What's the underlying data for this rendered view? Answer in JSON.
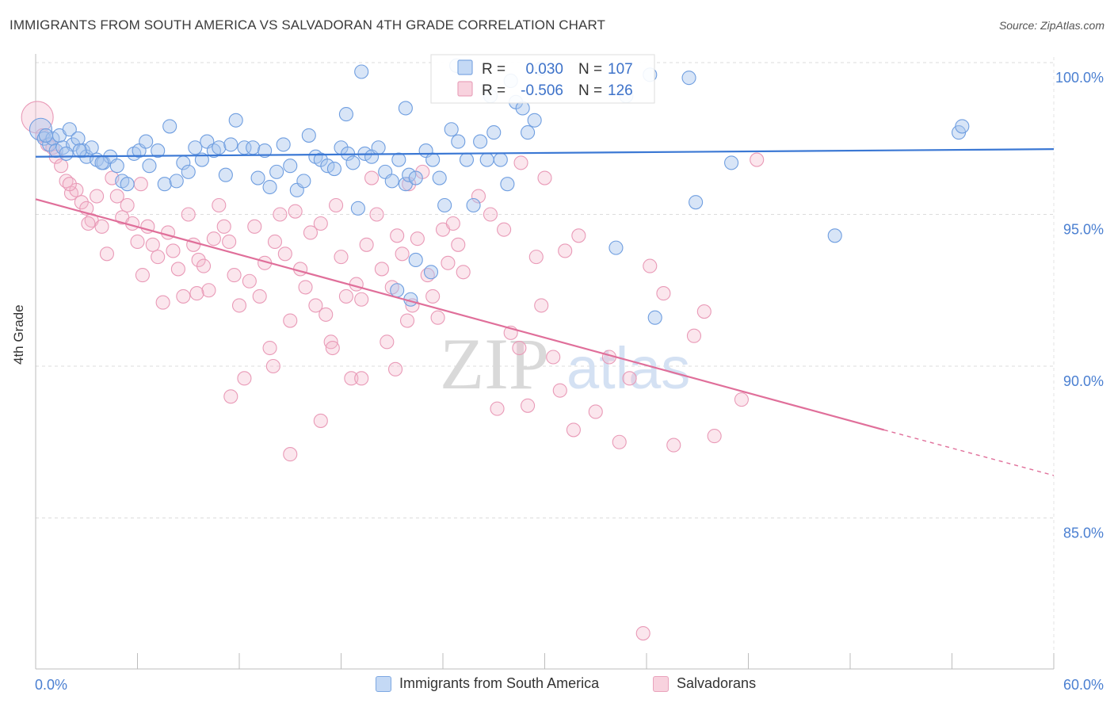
{
  "title": "IMMIGRANTS FROM SOUTH AMERICA VS SALVADORAN 4TH GRADE CORRELATION CHART",
  "source": "Source: ZipAtlas.com",
  "watermark": {
    "zip": "ZIP",
    "atlas": "atlas"
  },
  "chart_data": {
    "type": "scatter",
    "xlabel": "",
    "ylabel": "4th Grade",
    "xlim": [
      0,
      60
    ],
    "ylim": [
      80.5,
      101
    ],
    "x_tick_labels": [
      "0.0%",
      "60.0%"
    ],
    "y_ticks": [
      100,
      95,
      90,
      85
    ],
    "y_tick_labels": [
      "100.0%",
      "95.0%",
      "90.0%",
      "85.0%"
    ],
    "grid": true,
    "legend_position": "top-center",
    "colors": {
      "blue": "#4a86d8",
      "blue_fill": "#a9c6ee",
      "pink": "#e06f9a",
      "pink_fill": "#f3b6cb",
      "accent_text": "#3d72c9"
    },
    "stats": [
      {
        "r_label": "R =",
        "r_value": "0.030",
        "n_label": "N =",
        "n_value": "107"
      },
      {
        "r_label": "R =",
        "r_value": "-0.506",
        "n_label": "N =",
        "n_value": "126"
      }
    ],
    "series": [
      {
        "name": "Immigrants from South America",
        "color": "#4a86d8",
        "trend": {
          "x": [
            0,
            60
          ],
          "y": [
            96.9,
            97.15
          ]
        },
        "points": [
          [
            0.3,
            97.8
          ],
          [
            0.5,
            97.5
          ],
          [
            0.8,
            97.3
          ],
          [
            1.0,
            97.5
          ],
          [
            1.2,
            97.1
          ],
          [
            1.4,
            97.6
          ],
          [
            1.6,
            97.2
          ],
          [
            2.0,
            97.8
          ],
          [
            2.2,
            97.3
          ],
          [
            2.5,
            97.5
          ],
          [
            2.8,
            97.1
          ],
          [
            3.0,
            96.9
          ],
          [
            3.3,
            97.2
          ],
          [
            3.6,
            96.8
          ],
          [
            4.0,
            96.7
          ],
          [
            4.4,
            96.9
          ],
          [
            4.8,
            96.6
          ],
          [
            5.1,
            96.1
          ],
          [
            5.4,
            96.0
          ],
          [
            5.8,
            97.0
          ],
          [
            6.1,
            97.1
          ],
          [
            6.5,
            97.4
          ],
          [
            6.7,
            96.6
          ],
          [
            7.2,
            97.1
          ],
          [
            7.6,
            96.0
          ],
          [
            7.9,
            97.9
          ],
          [
            8.3,
            96.1
          ],
          [
            8.7,
            96.7
          ],
          [
            9.0,
            96.4
          ],
          [
            9.4,
            97.2
          ],
          [
            9.8,
            96.8
          ],
          [
            10.1,
            97.4
          ],
          [
            10.5,
            97.1
          ],
          [
            10.8,
            97.2
          ],
          [
            11.2,
            96.3
          ],
          [
            11.5,
            97.3
          ],
          [
            11.8,
            98.1
          ],
          [
            12.3,
            97.2
          ],
          [
            12.8,
            97.2
          ],
          [
            13.1,
            96.2
          ],
          [
            13.5,
            97.1
          ],
          [
            13.8,
            95.9
          ],
          [
            14.2,
            96.4
          ],
          [
            14.6,
            97.3
          ],
          [
            15.0,
            96.6
          ],
          [
            15.4,
            95.8
          ],
          [
            15.8,
            96.1
          ],
          [
            16.1,
            97.6
          ],
          [
            16.5,
            96.9
          ],
          [
            16.8,
            96.8
          ],
          [
            17.2,
            96.6
          ],
          [
            17.6,
            96.5
          ],
          [
            18.0,
            97.2
          ],
          [
            18.4,
            97.0
          ],
          [
            18.7,
            96.7
          ],
          [
            19.0,
            95.2
          ],
          [
            19.4,
            97.0
          ],
          [
            19.8,
            96.9
          ],
          [
            20.2,
            97.2
          ],
          [
            20.6,
            96.4
          ],
          [
            21.0,
            96.1
          ],
          [
            21.4,
            96.8
          ],
          [
            21.8,
            96.0
          ],
          [
            22.0,
            96.3
          ],
          [
            22.4,
            96.2
          ],
          [
            23.0,
            97.1
          ],
          [
            23.4,
            96.8
          ],
          [
            23.8,
            96.2
          ],
          [
            24.1,
            95.3
          ],
          [
            24.5,
            97.8
          ],
          [
            24.9,
            97.4
          ],
          [
            25.4,
            96.8
          ],
          [
            25.8,
            95.3
          ],
          [
            26.2,
            97.4
          ],
          [
            26.6,
            96.8
          ],
          [
            27.0,
            97.7
          ],
          [
            27.4,
            96.8
          ],
          [
            27.8,
            96.0
          ],
          [
            28.3,
            98.7
          ],
          [
            28.7,
            98.5
          ],
          [
            29.0,
            97.7
          ],
          [
            29.4,
            98.1
          ],
          [
            0.6,
            97.6
          ],
          [
            1.8,
            97.0
          ],
          [
            2.6,
            97.1
          ],
          [
            3.9,
            96.7
          ],
          [
            19.2,
            99.7
          ],
          [
            18.3,
            98.3
          ],
          [
            24.8,
            99.9
          ],
          [
            28.0,
            99.4
          ],
          [
            29.8,
            99.8
          ],
          [
            21.8,
            98.5
          ],
          [
            26.8,
            98.9
          ],
          [
            22.4,
            93.5
          ],
          [
            23.3,
            93.1
          ],
          [
            21.3,
            92.5
          ],
          [
            22.1,
            92.2
          ],
          [
            34.8,
            98.9
          ],
          [
            36.2,
            99.6
          ],
          [
            38.5,
            99.5
          ],
          [
            38.9,
            95.4
          ],
          [
            36.5,
            91.6
          ],
          [
            34.2,
            93.9
          ],
          [
            41.0,
            96.7
          ],
          [
            47.1,
            94.3
          ],
          [
            54.4,
            97.7
          ],
          [
            54.6,
            97.9
          ]
        ]
      },
      {
        "name": "Salvadorans",
        "color": "#e06f9a",
        "trend": {
          "x": [
            0,
            50
          ],
          "y": [
            95.5,
            87.9
          ]
        },
        "trend_dashed": {
          "x": [
            50,
            60
          ],
          "y": [
            87.9,
            86.4
          ]
        },
        "points": [
          [
            0.1,
            98.2
          ],
          [
            0.4,
            97.6
          ],
          [
            0.7,
            97.3
          ],
          [
            1.0,
            97.2
          ],
          [
            1.2,
            96.9
          ],
          [
            1.5,
            96.6
          ],
          [
            1.8,
            96.1
          ],
          [
            2.1,
            95.7
          ],
          [
            2.4,
            95.8
          ],
          [
            2.7,
            95.4
          ],
          [
            3.0,
            95.2
          ],
          [
            3.3,
            94.8
          ],
          [
            3.6,
            95.6
          ],
          [
            3.9,
            94.6
          ],
          [
            4.2,
            93.7
          ],
          [
            4.5,
            96.2
          ],
          [
            4.8,
            95.6
          ],
          [
            5.1,
            94.9
          ],
          [
            5.4,
            95.3
          ],
          [
            5.7,
            94.7
          ],
          [
            6.0,
            94.1
          ],
          [
            6.3,
            93.0
          ],
          [
            6.6,
            94.6
          ],
          [
            6.9,
            94.0
          ],
          [
            7.2,
            93.6
          ],
          [
            7.5,
            92.1
          ],
          [
            7.8,
            94.4
          ],
          [
            8.1,
            93.8
          ],
          [
            8.4,
            93.2
          ],
          [
            8.7,
            92.3
          ],
          [
            9.0,
            95.0
          ],
          [
            9.3,
            94.0
          ],
          [
            9.6,
            93.5
          ],
          [
            9.9,
            93.3
          ],
          [
            10.2,
            92.5
          ],
          [
            10.5,
            94.2
          ],
          [
            10.8,
            95.3
          ],
          [
            11.1,
            94.6
          ],
          [
            11.4,
            94.1
          ],
          [
            11.7,
            93.0
          ],
          [
            12.0,
            92.0
          ],
          [
            12.3,
            89.6
          ],
          [
            12.6,
            92.8
          ],
          [
            12.9,
            94.6
          ],
          [
            13.2,
            92.3
          ],
          [
            13.5,
            93.4
          ],
          [
            13.8,
            90.6
          ],
          [
            14.1,
            94.1
          ],
          [
            14.4,
            95.0
          ],
          [
            14.7,
            93.7
          ],
          [
            15.0,
            91.5
          ],
          [
            15.3,
            95.1
          ],
          [
            15.6,
            93.2
          ],
          [
            15.9,
            92.6
          ],
          [
            16.2,
            94.4
          ],
          [
            16.5,
            92.0
          ],
          [
            16.8,
            94.7
          ],
          [
            17.1,
            91.7
          ],
          [
            17.4,
            90.8
          ],
          [
            17.7,
            95.3
          ],
          [
            18.0,
            93.6
          ],
          [
            18.3,
            92.3
          ],
          [
            18.6,
            89.6
          ],
          [
            18.9,
            92.7
          ],
          [
            19.2,
            92.2
          ],
          [
            19.5,
            94.0
          ],
          [
            19.8,
            96.2
          ],
          [
            20.1,
            95.0
          ],
          [
            20.4,
            93.2
          ],
          [
            20.7,
            90.8
          ],
          [
            21.0,
            92.6
          ],
          [
            21.3,
            94.3
          ],
          [
            21.6,
            93.7
          ],
          [
            21.9,
            91.5
          ],
          [
            22.2,
            92.0
          ],
          [
            22.5,
            94.2
          ],
          [
            22.8,
            96.4
          ],
          [
            23.1,
            93.0
          ],
          [
            23.4,
            92.3
          ],
          [
            23.7,
            91.6
          ],
          [
            24.0,
            94.5
          ],
          [
            24.3,
            93.4
          ],
          [
            24.6,
            94.7
          ],
          [
            24.9,
            94.0
          ],
          [
            25.2,
            93.1
          ],
          [
            2.0,
            96.0
          ],
          [
            3.1,
            94.7
          ],
          [
            6.2,
            96.0
          ],
          [
            9.5,
            92.4
          ],
          [
            14.0,
            90.0
          ],
          [
            11.5,
            89.0
          ],
          [
            15.0,
            87.1
          ],
          [
            16.8,
            88.2
          ],
          [
            17.5,
            90.6
          ],
          [
            19.2,
            89.6
          ],
          [
            21.2,
            89.9
          ],
          [
            22.0,
            96.0
          ],
          [
            26.1,
            95.6
          ],
          [
            26.8,
            95.0
          ],
          [
            27.6,
            94.5
          ],
          [
            28.0,
            91.1
          ],
          [
            28.5,
            90.6
          ],
          [
            27.2,
            88.6
          ],
          [
            29.0,
            88.7
          ],
          [
            29.8,
            92.0
          ],
          [
            30.5,
            90.3
          ],
          [
            30.9,
            89.2
          ],
          [
            32.0,
            94.3
          ],
          [
            33.8,
            90.3
          ],
          [
            34.4,
            87.5
          ],
          [
            36.2,
            93.3
          ],
          [
            37.6,
            87.4
          ],
          [
            38.8,
            91.0
          ],
          [
            42.5,
            96.8
          ],
          [
            40.0,
            87.7
          ],
          [
            41.6,
            88.9
          ],
          [
            33.0,
            88.5
          ],
          [
            35.0,
            89.6
          ],
          [
            37.0,
            92.4
          ],
          [
            39.4,
            91.8
          ],
          [
            35.8,
            81.2
          ],
          [
            31.7,
            87.9
          ],
          [
            30.0,
            96.2
          ],
          [
            28.6,
            96.7
          ],
          [
            31.2,
            93.8
          ],
          [
            29.5,
            93.6
          ]
        ]
      }
    ]
  }
}
